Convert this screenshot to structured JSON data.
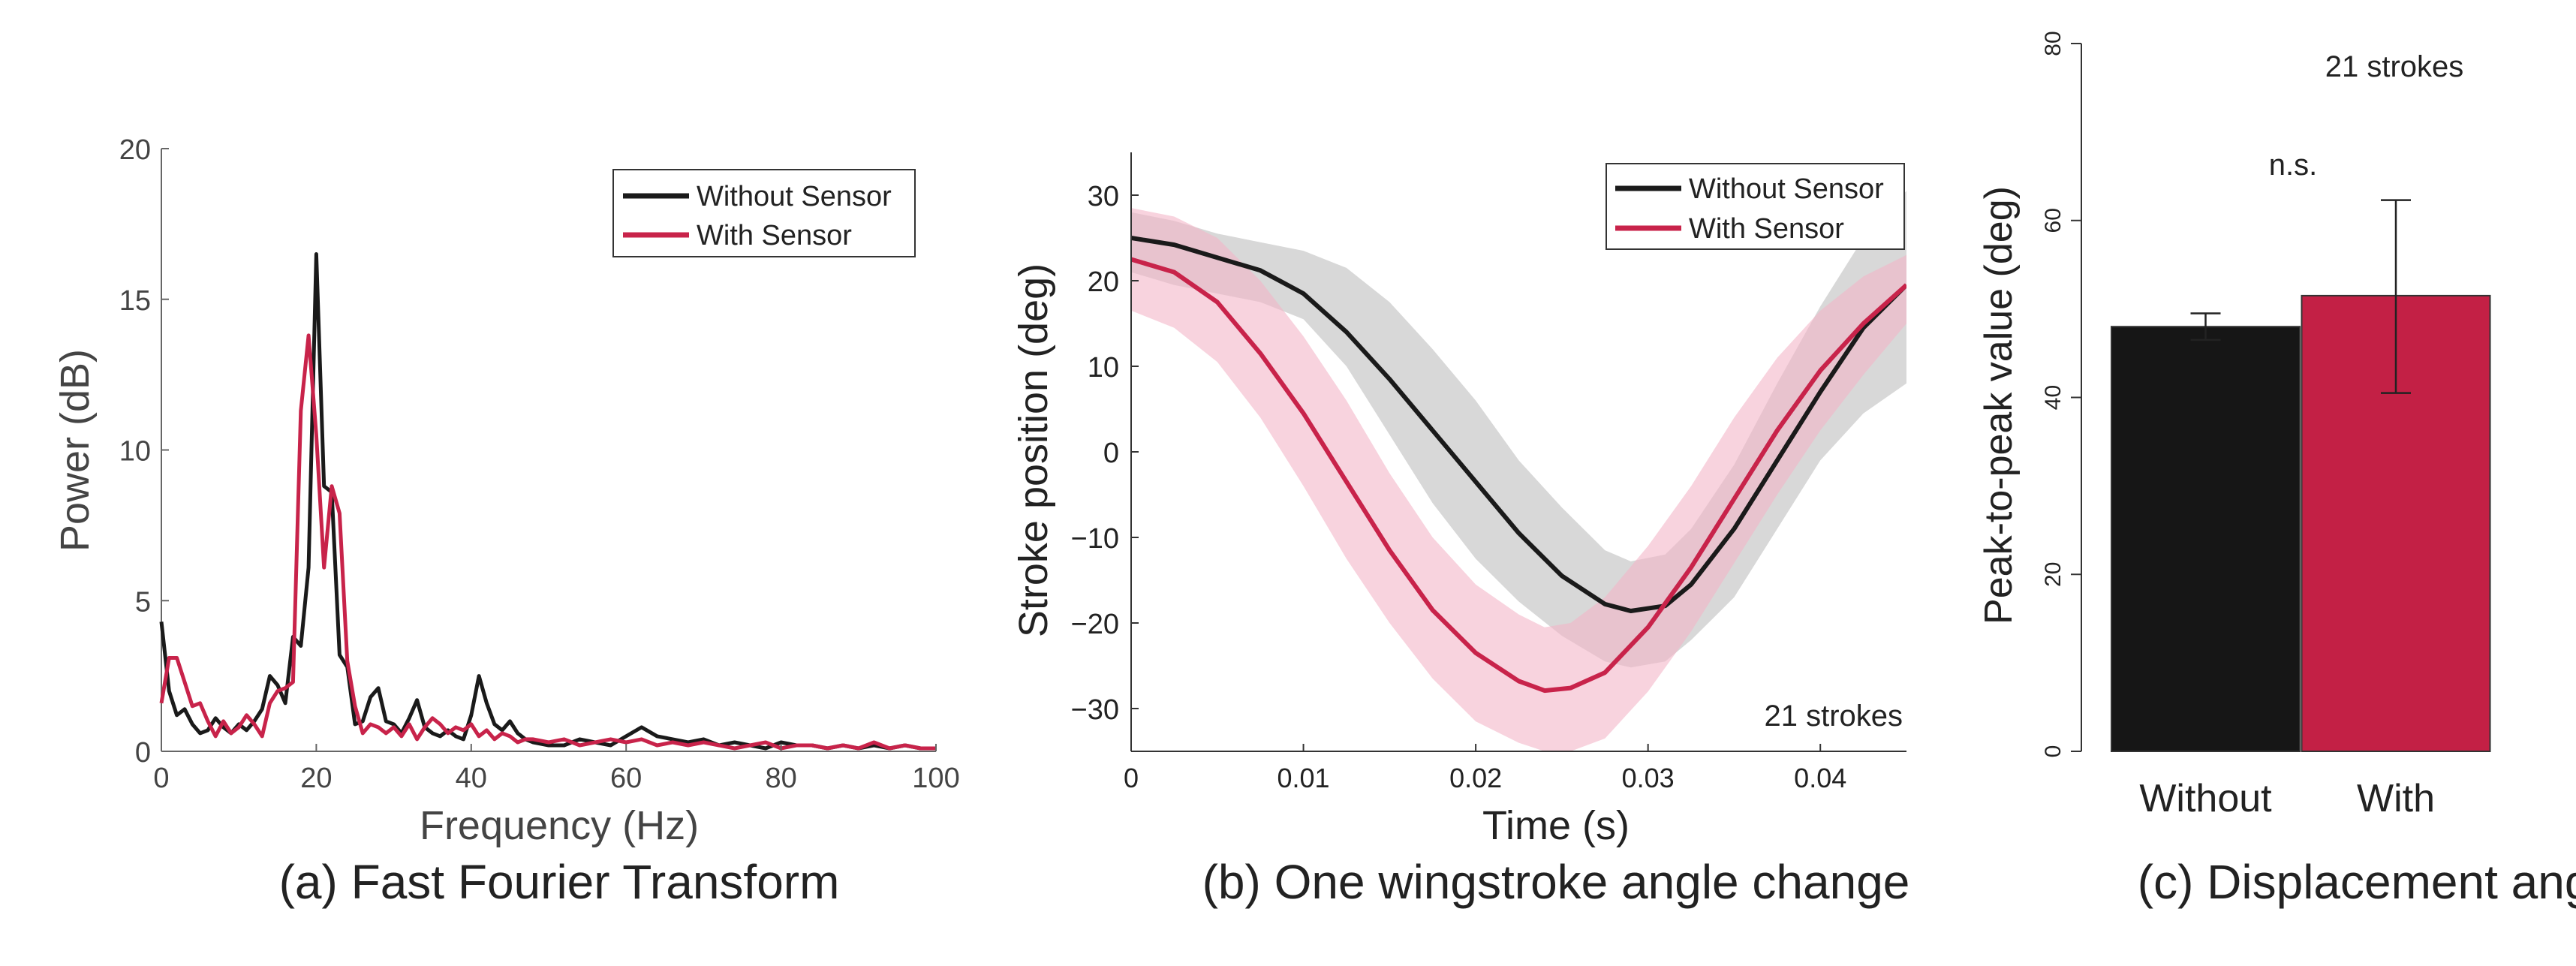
{
  "chart_data": [
    {
      "type": "line",
      "id": "fft",
      "caption": "(a) Fast Fourier Transform",
      "xlabel": "Frequency (Hz)",
      "ylabel": "Power (dB)",
      "xlim": [
        0,
        100
      ],
      "ylim": [
        0,
        20
      ],
      "xticks": [
        0,
        20,
        40,
        60,
        80,
        100
      ],
      "yticks": [
        0,
        5,
        10,
        15,
        20
      ],
      "legend_position": "top-right",
      "series": [
        {
          "name": "Without Sensor",
          "color": "#1a1a1a",
          "x": [
            0,
            1,
            2,
            3,
            4,
            5,
            6,
            7,
            8,
            9,
            10,
            11,
            12,
            13,
            14,
            15,
            16,
            17,
            18,
            19,
            20,
            21,
            22,
            23,
            24,
            25,
            26,
            27,
            28,
            29,
            30,
            31,
            32,
            33,
            34,
            35,
            36,
            37,
            38,
            39,
            40,
            41,
            42,
            43,
            44,
            45,
            46,
            47,
            48,
            50,
            52,
            54,
            56,
            58,
            60,
            62,
            64,
            66,
            68,
            70,
            72,
            74,
            76,
            78,
            80,
            82,
            84,
            86,
            88,
            90,
            92,
            94,
            96,
            98,
            100
          ],
          "y": [
            4.3,
            2.0,
            1.2,
            1.4,
            0.9,
            0.6,
            0.7,
            1.1,
            0.8,
            0.6,
            0.9,
            0.7,
            1.0,
            1.4,
            2.5,
            2.2,
            1.6,
            3.8,
            3.5,
            6.1,
            16.5,
            8.8,
            8.6,
            3.2,
            2.8,
            0.9,
            1.0,
            1.8,
            2.1,
            1.0,
            0.9,
            0.6,
            1.1,
            1.7,
            0.8,
            0.6,
            0.5,
            0.7,
            0.5,
            0.4,
            1.2,
            2.5,
            1.6,
            0.9,
            0.7,
            1.0,
            0.6,
            0.4,
            0.3,
            0.2,
            0.2,
            0.4,
            0.3,
            0.2,
            0.5,
            0.8,
            0.5,
            0.4,
            0.3,
            0.4,
            0.2,
            0.3,
            0.2,
            0.1,
            0.3,
            0.2,
            0.2,
            0.1,
            0.2,
            0.1,
            0.2,
            0.1,
            0.2,
            0.1,
            0.1
          ]
        },
        {
          "name": "With Sensor",
          "color": "#c8234a",
          "x": [
            0,
            1,
            2,
            3,
            4,
            5,
            6,
            7,
            8,
            9,
            10,
            11,
            12,
            13,
            14,
            15,
            16,
            17,
            18,
            19,
            20,
            21,
            22,
            23,
            24,
            25,
            26,
            27,
            28,
            29,
            30,
            31,
            32,
            33,
            34,
            35,
            36,
            37,
            38,
            39,
            40,
            41,
            42,
            43,
            44,
            45,
            46,
            47,
            48,
            50,
            52,
            54,
            56,
            58,
            60,
            62,
            64,
            66,
            68,
            70,
            72,
            74,
            76,
            78,
            80,
            82,
            84,
            86,
            88,
            90,
            92,
            94,
            96,
            98,
            100
          ],
          "y": [
            1.6,
            3.1,
            3.1,
            2.3,
            1.5,
            1.6,
            1.0,
            0.5,
            1.0,
            0.6,
            0.8,
            1.2,
            0.9,
            0.5,
            1.6,
            2.0,
            2.1,
            2.3,
            11.3,
            13.8,
            10.5,
            6.1,
            8.8,
            7.9,
            3.0,
            1.5,
            0.6,
            0.9,
            0.8,
            0.6,
            0.8,
            0.5,
            0.9,
            0.4,
            0.8,
            1.1,
            0.9,
            0.6,
            0.8,
            0.7,
            0.9,
            0.5,
            0.7,
            0.4,
            0.6,
            0.5,
            0.3,
            0.4,
            0.4,
            0.3,
            0.4,
            0.2,
            0.3,
            0.4,
            0.3,
            0.4,
            0.2,
            0.3,
            0.2,
            0.3,
            0.2,
            0.1,
            0.2,
            0.3,
            0.1,
            0.2,
            0.2,
            0.1,
            0.2,
            0.1,
            0.3,
            0.1,
            0.2,
            0.1,
            0.1
          ]
        }
      ]
    },
    {
      "type": "line",
      "id": "stroke",
      "caption": "(b) One wingstroke angle change",
      "xlabel": "Time (s)",
      "ylabel": "Stroke position (deg)",
      "xlim": [
        0,
        0.045
      ],
      "ylim": [
        -35,
        35
      ],
      "xticks": [
        0,
        0.01,
        0.02,
        0.03,
        0.04
      ],
      "xtick_labels": [
        "0",
        "0.01",
        "0.02",
        "0.03",
        "0.04"
      ],
      "yticks": [
        -30,
        -20,
        -10,
        0,
        10,
        20,
        30
      ],
      "ytick_labels": [
        "−30",
        "−20",
        "−10",
        "0",
        "10",
        "20",
        "30"
      ],
      "annotation": "21 strokes",
      "legend_position": "top-right",
      "series": [
        {
          "name": "Without Sensor",
          "color": "#1a1a1a",
          "band_color": "#c8c8c8",
          "x": [
            0,
            0.0025,
            0.005,
            0.0075,
            0.01,
            0.0125,
            0.015,
            0.0175,
            0.02,
            0.0225,
            0.025,
            0.0275,
            0.029,
            0.031,
            0.0325,
            0.035,
            0.0375,
            0.04,
            0.0425,
            0.045
          ],
          "y": [
            25,
            24.2,
            22.7,
            21.2,
            18.5,
            14.0,
            8.5,
            2.5,
            -3.5,
            -9.5,
            -14.5,
            -17.8,
            -18.6,
            -18.0,
            -15.5,
            -9.0,
            -1.0,
            7.0,
            14.5,
            19.5
          ],
          "upper": [
            28,
            27,
            25.5,
            24.5,
            23.5,
            21.5,
            17.5,
            12.0,
            6.0,
            -1.0,
            -6.5,
            -11.5,
            -12.8,
            -12.0,
            -9.0,
            -1.5,
            8.0,
            17.0,
            25.0,
            30.5
          ],
          "lower": [
            21,
            19.5,
            18.5,
            17.5,
            15.5,
            10.0,
            2.0,
            -6.0,
            -12.5,
            -17.5,
            -21.5,
            -24.5,
            -25.2,
            -24.5,
            -22.0,
            -17.0,
            -9.0,
            -1.0,
            4.5,
            8.0
          ]
        },
        {
          "name": "With Sensor",
          "color": "#c8234a",
          "band_color": "#f4b6c8",
          "x": [
            0,
            0.0025,
            0.005,
            0.0075,
            0.01,
            0.0125,
            0.015,
            0.0175,
            0.02,
            0.0225,
            0.024,
            0.0255,
            0.0275,
            0.03,
            0.0325,
            0.035,
            0.0375,
            0.04,
            0.0425,
            0.045
          ],
          "y": [
            22.5,
            21.0,
            17.5,
            11.5,
            4.5,
            -3.5,
            -11.5,
            -18.5,
            -23.5,
            -26.8,
            -27.9,
            -27.6,
            -25.8,
            -20.5,
            -13.5,
            -5.5,
            2.5,
            9.5,
            15.0,
            19.5
          ],
          "upper": [
            28.5,
            27.5,
            25,
            20,
            13.5,
            6,
            -2.5,
            -10,
            -15.5,
            -19,
            -20.5,
            -20,
            -17,
            -11,
            -4,
            4,
            11,
            16.5,
            20.5,
            23
          ],
          "lower": [
            16.5,
            14.5,
            10.5,
            4,
            -4,
            -12.5,
            -20,
            -26.5,
            -31.5,
            -34,
            -35,
            -35,
            -33.5,
            -28,
            -21,
            -13,
            -5,
            2.5,
            9,
            15
          ]
        }
      ]
    },
    {
      "type": "bar",
      "id": "displacement",
      "caption": "(c) Displacement angle",
      "ylabel": "Peak-to-peak value (deg)",
      "ylim": [
        0,
        80
      ],
      "yticks": [
        0,
        20,
        40,
        60,
        80
      ],
      "annotation": "21 strokes",
      "significance": "n.s.",
      "categories": [
        "Without",
        "With"
      ],
      "values": [
        48.0,
        51.5
      ],
      "error_low": [
        46.5,
        40.5
      ],
      "error_high": [
        49.5,
        62.3
      ],
      "colors": [
        "#161616",
        "#c32045"
      ]
    }
  ]
}
